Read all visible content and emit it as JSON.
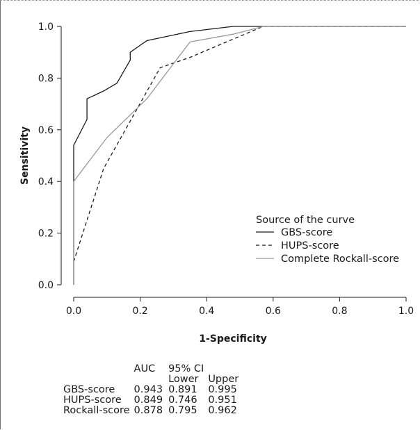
{
  "chart_data": {
    "type": "line",
    "xlabel": "1-Specificity",
    "ylabel": "Sensitivity",
    "xlim": [
      0,
      1
    ],
    "ylim": [
      0,
      1
    ],
    "xticks": [
      "0.0",
      "0.2",
      "0.4",
      "0.6",
      "0.8",
      "1.0"
    ],
    "yticks": [
      "0.0",
      "0.2",
      "0.4",
      "0.6",
      "0.8",
      "1.0"
    ],
    "grid": false,
    "legend": {
      "title": "Source of the curve",
      "position": "lower-right",
      "entries": [
        "GBS-score",
        "HUPS-score",
        "Complete Rockall-score"
      ]
    },
    "series": [
      {
        "name": "GBS-score",
        "color": "#1a1a1a",
        "dash": "solid",
        "x": [
          0,
          0,
          0.04,
          0.04,
          0.09,
          0.13,
          0.17,
          0.17,
          0.22,
          0.35,
          0.48,
          0.56,
          1.0
        ],
        "y": [
          0,
          0.54,
          0.64,
          0.72,
          0.75,
          0.78,
          0.87,
          0.9,
          0.945,
          0.98,
          1.0,
          1.0,
          1.0
        ]
      },
      {
        "name": "HUPS-score",
        "color": "#1a1a1a",
        "dash": "dashed",
        "x": [
          0,
          0.09,
          0.26,
          0.35,
          0.57,
          1.0
        ],
        "y": [
          0.09,
          0.45,
          0.84,
          0.88,
          1.0,
          1.0
        ]
      },
      {
        "name": "Complete Rockall-score",
        "color": "#999999",
        "dash": "solid",
        "x": [
          0,
          0,
          0.1,
          0.22,
          0.35,
          0.48,
          0.57,
          1.0
        ],
        "y": [
          0,
          0.4,
          0.57,
          0.72,
          0.94,
          0.97,
          1.0,
          1.0
        ]
      }
    ]
  },
  "auc_table": {
    "header_auc": "AUC",
    "header_ci": "95% CI",
    "header_lower": "Lower",
    "header_upper": "Upper",
    "rows": [
      {
        "label": "GBS-score",
        "auc": "0.943",
        "lower": "0.891",
        "upper": "0.995"
      },
      {
        "label": "HUPS-score",
        "auc": "0.849",
        "lower": "0.746",
        "upper": "0.951"
      },
      {
        "label": "Rockall-score",
        "auc": "0.878",
        "lower": "0.795",
        "upper": "0.962"
      }
    ]
  }
}
